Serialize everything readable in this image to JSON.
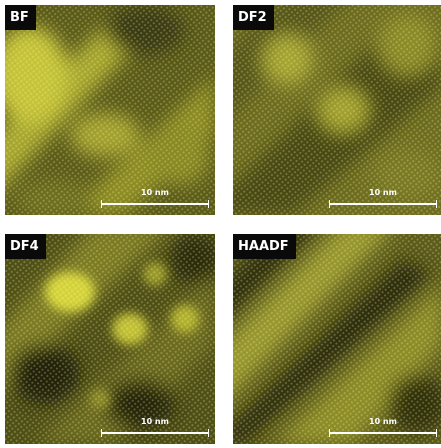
{
  "panels": [
    {
      "id": "bf",
      "label": "BF",
      "scale_bar": "10 nm"
    },
    {
      "id": "df2",
      "label": "DF2",
      "scale_bar": "10 nm"
    },
    {
      "id": "df4",
      "label": "DF4",
      "scale_bar": "10 nm"
    },
    {
      "id": "haadf",
      "label": "HAADF",
      "scale_bar": "10 nm"
    }
  ],
  "colors": {
    "image_tint": "#c8c832",
    "image_dark": "#2e2e0e",
    "label_background": "#0a0a0a",
    "label_text": "#ffffff",
    "figure_background": "#ffffff"
  }
}
